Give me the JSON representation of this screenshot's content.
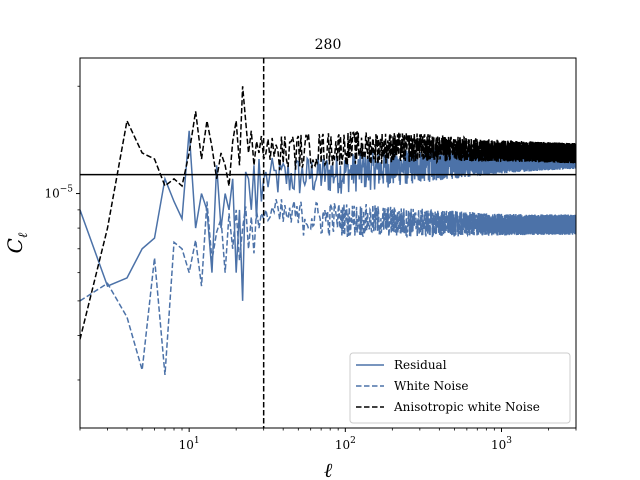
{
  "chart_data": {
    "type": "line",
    "title": "280",
    "xlabel": "ℓ",
    "ylabel": "C",
    "ylabel_sub": "ℓ",
    "xscale": "log",
    "yscale": "log",
    "xlim": [
      2,
      3000
    ],
    "ylim": [
      2.2e-06,
      2.4e-05
    ],
    "x_ticks": [
      {
        "value": 10,
        "base": "10",
        "exp": "1"
      },
      {
        "value": 100,
        "base": "10",
        "exp": "2"
      },
      {
        "value": 1000,
        "base": "10",
        "exp": "3"
      }
    ],
    "y_ticks": [
      {
        "value": 1e-05,
        "base": "10",
        "exp": "−5"
      }
    ],
    "vline": {
      "x": 30,
      "style": "dashed",
      "color": "#000000"
    },
    "hline": {
      "y": 1.13e-05,
      "style": "solid",
      "color": "#000000"
    },
    "series": [
      {
        "name": "Residual",
        "style": "solid",
        "color": "#4c72a8",
        "points": [
          [
            2,
            9e-06
          ],
          [
            3,
            5.5e-06
          ],
          [
            4,
            5.8e-06
          ],
          [
            5,
            7e-06
          ],
          [
            6,
            7.5e-06
          ],
          [
            7,
            1.1e-05
          ],
          [
            8,
            9.5e-06
          ],
          [
            9,
            8.5e-06
          ],
          [
            10,
            1.5e-05
          ],
          [
            11,
            8e-06
          ],
          [
            12,
            1e-05
          ],
          [
            13,
            9e-06
          ],
          [
            14,
            6e-06
          ],
          [
            15,
            1.2e-05
          ],
          [
            16,
            8e-06
          ],
          [
            17,
            1e-05
          ],
          [
            18,
            9e-06
          ],
          [
            19,
            1.1e-05
          ],
          [
            20,
            6e-06
          ],
          [
            21,
            9e-06
          ],
          [
            22,
            5e-06
          ],
          [
            23,
            1.15e-05
          ],
          [
            24,
            1.1e-05
          ],
          [
            25,
            9e-06
          ],
          [
            26,
            1.2e-05
          ],
          [
            27,
            8.5e-06
          ],
          [
            28,
            1.25e-05
          ],
          [
            29,
            9.5e-06
          ],
          [
            30,
            1.1e-05
          ]
        ],
        "trend": [
          [
            30,
            1.1e-05
          ],
          [
            100,
            1.15e-05
          ],
          [
            300,
            1.2e-05
          ],
          [
            1000,
            1.24e-05
          ],
          [
            3000,
            1.27e-05
          ]
        ],
        "spread": 0.14
      },
      {
        "name": "White Noise",
        "style": "dashed",
        "color": "#4c72a8",
        "points": [
          [
            2,
            5e-06
          ],
          [
            3,
            5.6e-06
          ],
          [
            4,
            4.5e-06
          ],
          [
            5,
            3.2e-06
          ],
          [
            6,
            6.6e-06
          ],
          [
            7,
            3.1e-06
          ],
          [
            8,
            7.3e-06
          ],
          [
            9,
            7e-06
          ],
          [
            10,
            6e-06
          ],
          [
            11,
            7.4e-06
          ],
          [
            12,
            5.5e-06
          ],
          [
            13,
            9.5e-06
          ],
          [
            14,
            6.5e-06
          ],
          [
            15,
            7.8e-06
          ],
          [
            16,
            8.5e-06
          ],
          [
            17,
            6e-06
          ],
          [
            18,
            8.8e-06
          ],
          [
            19,
            7e-06
          ],
          [
            20,
            9e-06
          ],
          [
            21,
            6.5e-06
          ],
          [
            22,
            8e-06
          ],
          [
            23,
            9.2e-06
          ],
          [
            24,
            7e-06
          ],
          [
            25,
            8.6e-06
          ],
          [
            26,
            6.8e-06
          ],
          [
            27,
            9e-06
          ],
          [
            28,
            8e-06
          ],
          [
            29,
            8.8e-06
          ],
          [
            30,
            8.5e-06
          ]
        ],
        "trend": [
          [
            30,
            8.7e-06
          ],
          [
            100,
            8.5e-06
          ],
          [
            300,
            8.3e-06
          ],
          [
            1000,
            8.2e-06
          ],
          [
            3000,
            8.2e-06
          ]
        ],
        "spread": 0.12
      },
      {
        "name": "Anisotropic white Noise",
        "style": "dashed",
        "color": "#000000",
        "points": [
          [
            2,
            3.9e-06
          ],
          [
            3,
            8e-06
          ],
          [
            4,
            1.6e-05
          ],
          [
            5,
            1.3e-05
          ],
          [
            6,
            1.25e-05
          ],
          [
            7,
            1.05e-05
          ],
          [
            8,
            1.1e-05
          ],
          [
            9,
            1.05e-05
          ],
          [
            10,
            1.3e-05
          ],
          [
            11,
            1.7e-05
          ],
          [
            12,
            1.25e-05
          ],
          [
            13,
            1.6e-05
          ],
          [
            14,
            1.35e-05
          ],
          [
            15,
            1.1e-05
          ],
          [
            16,
            1.3e-05
          ],
          [
            17,
            1.2e-05
          ],
          [
            18,
            1.05e-05
          ],
          [
            19,
            1.4e-05
          ],
          [
            20,
            1.6e-05
          ],
          [
            21,
            1.2e-05
          ],
          [
            22,
            2e-05
          ],
          [
            23,
            1.6e-05
          ],
          [
            24,
            1.3e-05
          ],
          [
            25,
            1.5e-05
          ],
          [
            26,
            1.2e-05
          ],
          [
            27,
            1.4e-05
          ],
          [
            28,
            1.3e-05
          ],
          [
            29,
            1.45e-05
          ],
          [
            30,
            1.25e-05
          ]
        ],
        "trend": [
          [
            30,
            1.3e-05
          ],
          [
            100,
            1.35e-05
          ],
          [
            300,
            1.35e-05
          ],
          [
            1000,
            1.32e-05
          ],
          [
            3000,
            1.3e-05
          ]
        ],
        "spread": 0.12
      }
    ],
    "legend": {
      "position": "lower-right",
      "entries": [
        "Residual",
        "White Noise",
        "Anisotropic white Noise"
      ]
    }
  }
}
